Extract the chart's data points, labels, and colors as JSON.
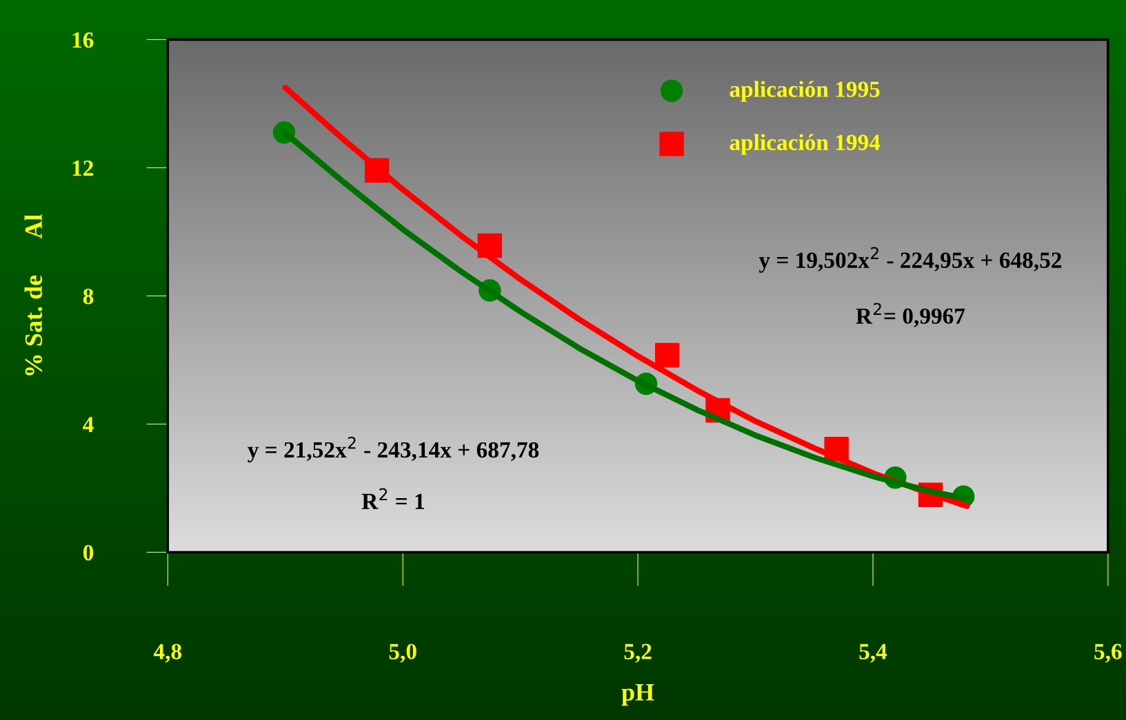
{
  "chart_data": {
    "type": "scatter",
    "xlabel": "pH",
    "ylabel": "% Sat. de      Al",
    "xlim": [
      4.8,
      5.6
    ],
    "ylim": [
      0,
      16
    ],
    "xticks": [
      {
        "value": 4.8,
        "label": "4,8"
      },
      {
        "value": 5.0,
        "label": "5,0"
      },
      {
        "value": 5.2,
        "label": "5,2"
      },
      {
        "value": 5.4,
        "label": "5,4"
      },
      {
        "value": 5.6,
        "label": "5,6"
      }
    ],
    "yticks": [
      0,
      4,
      8,
      12,
      16
    ],
    "grid": false,
    "legend": "top right",
    "series": [
      {
        "type": "line",
        "color": "#ff0000",
        "marker": "none",
        "x": [
          4.9,
          4.95,
          5.0,
          5.05,
          5.1,
          5.15,
          5.2,
          5.25,
          5.3,
          5.35,
          5.4,
          5.45,
          5.48
        ],
        "values": [
          14.5,
          12.87,
          11.32,
          9.87,
          8.52,
          7.27,
          6.12,
          5.06,
          4.09,
          3.25,
          2.47,
          1.81,
          1.44
        ]
      },
      {
        "type": "line",
        "color": "#007000",
        "marker": "none",
        "x": [
          4.9,
          4.95,
          5.0,
          5.05,
          5.1,
          5.15,
          5.2,
          5.25,
          5.3,
          5.35,
          5.4,
          5.45,
          5.48
        ],
        "values": [
          13.08,
          11.54,
          10.08,
          8.75,
          7.51,
          6.37,
          5.35,
          4.45,
          3.65,
          2.96,
          2.37,
          1.89,
          1.67
        ]
      },
      {
        "name": "aplicación 1995",
        "color": "#008000",
        "marker": "circle",
        "x": [
          4.899,
          5.074,
          5.207,
          5.419,
          5.477
        ],
        "values": [
          13.1,
          8.17,
          5.26,
          2.33,
          1.74
        ]
      },
      {
        "name": "aplicación 1994",
        "color": "#ff0000",
        "marker": "square",
        "x": [
          4.978,
          5.074,
          5.225,
          5.268,
          5.369,
          5.449
        ],
        "values": [
          11.92,
          9.57,
          6.15,
          4.43,
          3.22,
          1.79
        ]
      }
    ],
    "annotations": [
      "y = 19,502x$^{2}$ - 224,95x + 648,52",
      "R$^{2}$= 0,9967",
      "y = 21,52x$^{2}$ - 243,14x + 687,78",
      "R$^{2}$ = 1"
    ]
  }
}
